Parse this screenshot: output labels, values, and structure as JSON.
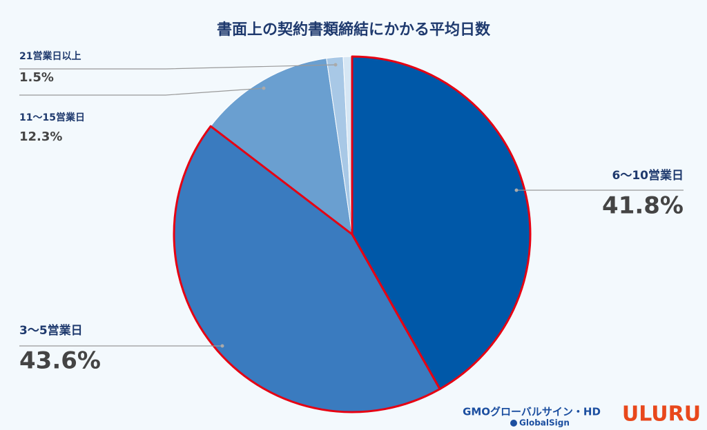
{
  "chart_data": {
    "type": "pie",
    "title": "書面上の契約書類締結にかかる平均日数",
    "categories": [
      "6〜10営業日",
      "3〜5営業日",
      "11〜15営業日",
      "21営業日以上",
      null
    ],
    "values": [
      41.8,
      43.6,
      12.3,
      1.5,
      0.8
    ],
    "value_labels": [
      "41.8%",
      "43.6%",
      "12.3%",
      "1.5%",
      null
    ],
    "colors": [
      "#0058a8",
      "#3a7bbf",
      "#6a9fd0",
      "#a8c8e6",
      "#d6e6f4"
    ],
    "highlight": [
      true,
      true,
      false,
      false,
      false
    ],
    "highlight_color": "#e60012"
  },
  "logos": {
    "gmo": "GMOグローバルサイン・HD",
    "globalsign": "GlobalSign",
    "uluru": "ULURU"
  }
}
